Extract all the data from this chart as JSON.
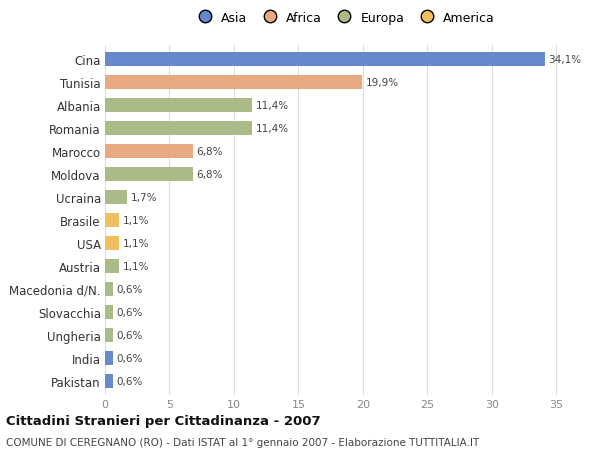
{
  "categories": [
    "Cina",
    "Tunisia",
    "Albania",
    "Romania",
    "Marocco",
    "Moldova",
    "Ucraina",
    "Brasile",
    "USA",
    "Austria",
    "Macedonia d/N.",
    "Slovacchia",
    "Ungheria",
    "India",
    "Pakistan"
  ],
  "values": [
    34.1,
    19.9,
    11.4,
    11.4,
    6.8,
    6.8,
    1.7,
    1.1,
    1.1,
    1.1,
    0.6,
    0.6,
    0.6,
    0.6,
    0.6
  ],
  "labels": [
    "34,1%",
    "19,9%",
    "11,4%",
    "11,4%",
    "6,8%",
    "6,8%",
    "1,7%",
    "1,1%",
    "1,1%",
    "1,1%",
    "0,6%",
    "0,6%",
    "0,6%",
    "0,6%",
    "0,6%"
  ],
  "colors": [
    "#6688cc",
    "#e8a882",
    "#aabb88",
    "#aabb88",
    "#e8a882",
    "#aabb88",
    "#aabb88",
    "#f0c060",
    "#f0c060",
    "#aabb88",
    "#aabb88",
    "#aabb88",
    "#aabb88",
    "#6688cc",
    "#6688cc"
  ],
  "continent_labels": [
    "Asia",
    "Africa",
    "Europa",
    "America"
  ],
  "continent_colors": [
    "#6688cc",
    "#e8a882",
    "#aabb88",
    "#f0c060"
  ],
  "xlim": [
    0,
    37
  ],
  "xticks": [
    0,
    5,
    10,
    15,
    20,
    25,
    30,
    35
  ],
  "title": "Cittadini Stranieri per Cittadinanza - 2007",
  "subtitle": "COMUNE DI CEREGNANO (RO) - Dati ISTAT al 1° gennaio 2007 - Elaborazione TUTTITALIA.IT",
  "background_color": "#ffffff",
  "grid_color": "#dddddd",
  "bar_height": 0.6
}
